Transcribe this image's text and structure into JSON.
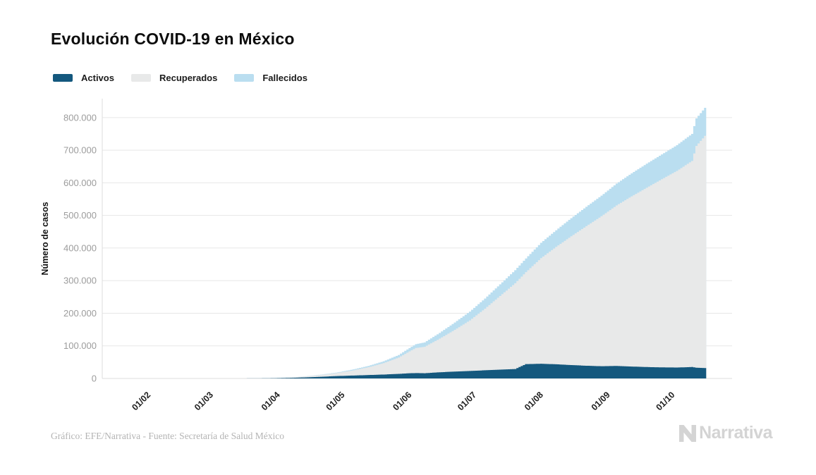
{
  "header": {
    "title": "Evolución COVID-19 en México"
  },
  "legend": [
    {
      "label": "Activos",
      "color": "#14587e"
    },
    {
      "label": "Recuperados",
      "color": "#e8e9e9"
    },
    {
      "label": "Fallecidos",
      "color": "#badef0"
    }
  ],
  "footer": {
    "credit": "Gráfico: EFE/Narrativa - Fuente: Secretaría de Salud México",
    "brand": "Narrativa"
  },
  "chart_data": {
    "type": "area",
    "stacked": true,
    "title": "Evolución COVID-19 en México",
    "xlabel": "",
    "ylabel": "Número de casos",
    "grid": "horizontal",
    "legend_position": "top-left",
    "x_domain": [
      "2020-01-11",
      "2020-10-29"
    ],
    "ylim": [
      0,
      858000
    ],
    "y_ticks": [
      0,
      100000,
      200000,
      300000,
      400000,
      500000,
      600000,
      700000,
      800000
    ],
    "y_tick_labels": [
      "0",
      "100.000",
      "200.000",
      "300.000",
      "400.000",
      "500.000",
      "600.000",
      "700.000",
      "800.000"
    ],
    "x_tick_dates": [
      "2020-02-01",
      "2020-03-01",
      "2020-04-01",
      "2020-05-01",
      "2020-06-01",
      "2020-07-01",
      "2020-08-01",
      "2020-09-01",
      "2020-10-01"
    ],
    "x_tick_labels": [
      "01/02",
      "01/03",
      "01/04",
      "01/05",
      "01/06",
      "01/07",
      "01/08",
      "01/09",
      "01/10"
    ],
    "x_dates": [
      "2020-01-22",
      "2020-03-01",
      "2020-03-15",
      "2020-03-25",
      "2020-04-01",
      "2020-04-08",
      "2020-04-15",
      "2020-04-22",
      "2020-04-29",
      "2020-05-06",
      "2020-05-13",
      "2020-05-20",
      "2020-05-27",
      "2020-06-01",
      "2020-06-04",
      "2020-06-08",
      "2020-06-15",
      "2020-06-22",
      "2020-06-29",
      "2020-07-06",
      "2020-07-13",
      "2020-07-20",
      "2020-07-25",
      "2020-08-01",
      "2020-08-08",
      "2020-08-15",
      "2020-08-22",
      "2020-08-29",
      "2020-09-05",
      "2020-09-12",
      "2020-09-19",
      "2020-09-26",
      "2020-10-03",
      "2020-10-10",
      "2020-10-12",
      "2020-10-16"
    ],
    "series": [
      {
        "name": "Activos",
        "color": "#14587e",
        "values": [
          0,
          4,
          40,
          400,
          1000,
          2000,
          3500,
          5500,
          7500,
          9000,
          10500,
          12000,
          14000,
          16000,
          16500,
          16000,
          19000,
          21000,
          23000,
          25000,
          27000,
          29000,
          44000,
          45000,
          43500,
          41000,
          39000,
          37500,
          38500,
          36500,
          35000,
          34000,
          33500,
          35000,
          33000,
          32000
        ]
      },
      {
        "name": "Recuperados",
        "color": "#e8e9e9",
        "values": [
          0,
          1,
          4,
          6,
          340,
          1500,
          3300,
          6100,
          9800,
          16000,
          24000,
          35000,
          50000,
          67000,
          77000,
          81000,
          103000,
          128000,
          155000,
          189000,
          226000,
          263000,
          282000,
          324000,
          360000,
          395000,
          428000,
          460000,
          492000,
          522000,
          550000,
          577000,
          603000,
          632000,
          680000,
          712000
        ]
      },
      {
        "name": "Fallecidos",
        "color": "#badef0",
        "values": [
          0,
          0,
          0,
          5,
          37,
          174,
          449,
          857,
          1569,
          2700,
          4000,
          5600,
          8000,
          10200,
          11700,
          13500,
          17600,
          22600,
          27100,
          31000,
          35500,
          40000,
          42000,
          47000,
          51000,
          55500,
          59500,
          63000,
          67000,
          70500,
          73500,
          76000,
          79000,
          83000,
          84500,
          86000
        ]
      }
    ]
  },
  "theme": {
    "grid_color": "#e7e7e7",
    "axis_color": "#dcdcdc",
    "y_tick_color": "#9c9c9c",
    "x_tick_color": "#1f1f1f",
    "brand_color": "#d4d4d4"
  }
}
